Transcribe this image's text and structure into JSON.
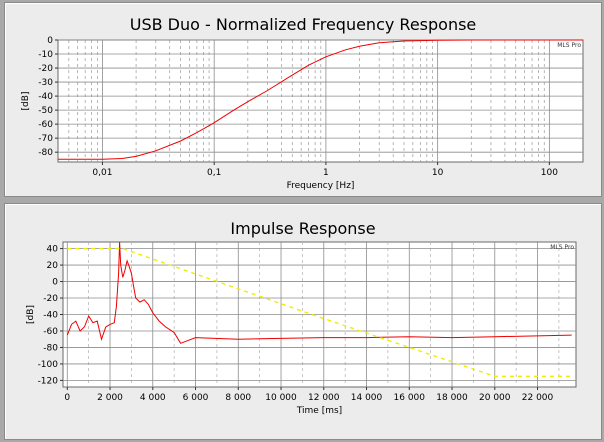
{
  "chart_data": [
    {
      "type": "line",
      "title": "USB Duo - Normalized Frequency Response",
      "xlabel": "Frequency [Hz]",
      "ylabel": "[dB]",
      "xscale": "log",
      "xlim": [
        0.004,
        200
      ],
      "ylim": [
        -87,
        0
      ],
      "x_tick_labels": [
        "0,01",
        "0,1",
        "1",
        "10",
        "100"
      ],
      "x_tick_values": [
        0.01,
        0.1,
        1,
        10,
        100
      ],
      "y_tick_labels": [
        "0",
        "-10",
        "-20",
        "-30",
        "-40",
        "-50",
        "-60",
        "-70",
        "-80"
      ],
      "y_tick_values": [
        0,
        -10,
        -20,
        -30,
        -40,
        -50,
        -60,
        -70,
        -80
      ],
      "grid": true,
      "watermark": "MLS Pro",
      "series": [
        {
          "color": "#ee0000",
          "x": [
            0.004,
            0.01,
            0.015,
            0.02,
            0.03,
            0.05,
            0.07,
            0.1,
            0.15,
            0.2,
            0.3,
            0.5,
            0.7,
            1,
            1.5,
            2,
            3,
            5,
            10,
            20,
            50,
            100,
            200
          ],
          "y": [
            -85,
            -85,
            -84.5,
            -83,
            -79,
            -72,
            -66,
            -59,
            -50,
            -44,
            -36,
            -25,
            -18,
            -12,
            -7,
            -4.5,
            -2,
            -0.7,
            -0.2,
            0,
            0,
            0,
            0
          ]
        }
      ]
    },
    {
      "type": "line",
      "title": "Impulse Response",
      "xlabel": "Time [ms]",
      "ylabel": "[dB]",
      "xlim": [
        -200,
        23800
      ],
      "ylim": [
        -128,
        48
      ],
      "x_tick_labels": [
        "0",
        "2 000",
        "4 000",
        "6 000",
        "8 000",
        "10 000",
        "12 000",
        "14 000",
        "16 000",
        "18 000",
        "20 000",
        "22 000"
      ],
      "x_tick_values": [
        0,
        2000,
        4000,
        6000,
        8000,
        10000,
        12000,
        14000,
        16000,
        18000,
        20000,
        22000
      ],
      "y_tick_labels": [
        "40",
        "20",
        "0",
        "-20",
        "-40",
        "-60",
        "-80",
        "-100",
        "-120"
      ],
      "y_tick_values": [
        40,
        20,
        0,
        -20,
        -40,
        -60,
        -80,
        -100,
        -120
      ],
      "grid": true,
      "watermark": "MLS Pro",
      "series": [
        {
          "color": "#ee0000",
          "x": [
            0,
            200,
            400,
            600,
            800,
            1000,
            1200,
            1400,
            1600,
            1800,
            2000,
            2200,
            2300,
            2400,
            2450,
            2500,
            2600,
            2700,
            2800,
            2900,
            3000,
            3100,
            3200,
            3400,
            3600,
            3800,
            4000,
            4300,
            4600,
            5000,
            5300,
            6000,
            8000,
            10000,
            12000,
            14000,
            16000,
            18000,
            20000,
            22000,
            23600
          ],
          "y": [
            -65,
            -52,
            -48,
            -60,
            -55,
            -42,
            -50,
            -48,
            -70,
            -55,
            -52,
            -50,
            -30,
            10,
            50,
            20,
            5,
            14,
            25,
            18,
            10,
            -5,
            -20,
            -25,
            -22,
            -28,
            -38,
            -48,
            -55,
            -62,
            -75,
            -68,
            -70,
            -69,
            -68,
            -68,
            -67,
            -68,
            -67,
            -66,
            -65
          ]
        },
        {
          "color": "#eeee00",
          "style": "dashed",
          "x": [
            0,
            2000,
            2600,
            12000,
            20000,
            23600
          ],
          "y": [
            40,
            40,
            40,
            -45,
            -115,
            -115
          ]
        }
      ]
    }
  ]
}
